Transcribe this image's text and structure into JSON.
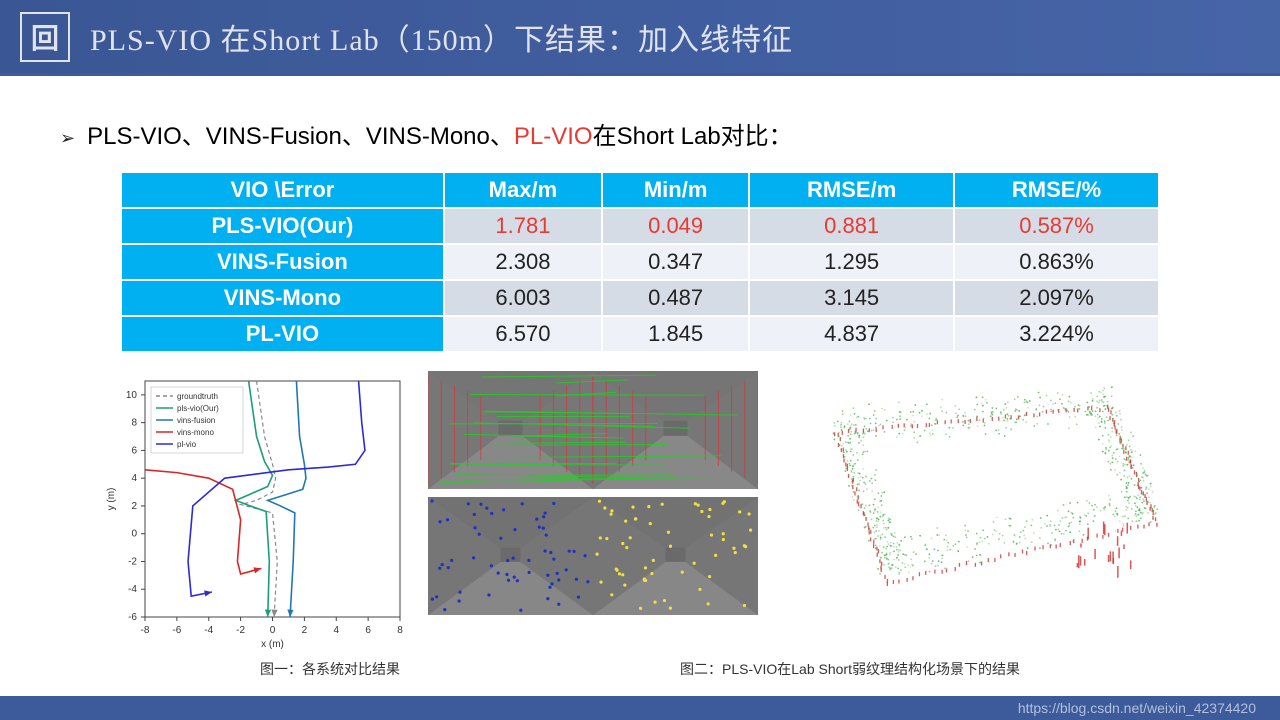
{
  "header": {
    "title": "PLS-VIO 在Short Lab（150m）下结果：加入线特征"
  },
  "bullet": {
    "prefix": "PLS-VIO、VINS-Fusion、VINS-Mono、",
    "highlighted": "PL-VIO",
    "suffix": "在Short Lab对比："
  },
  "table": {
    "columns": [
      "VIO \\Error",
      "Max/m",
      "Min/m",
      "RMSE/m",
      "RMSE/%"
    ],
    "rows": [
      {
        "name": "PLS-VIO(Our)",
        "vals": [
          "1.781",
          "0.049",
          "0.881",
          "0.587%"
        ],
        "highlight": true
      },
      {
        "name": "VINS-Fusion",
        "vals": [
          "2.308",
          "0.347",
          "1.295",
          "0.863%"
        ],
        "highlight": false
      },
      {
        "name": "VINS-Mono",
        "vals": [
          "6.003",
          "0.487",
          "3.145",
          "2.097%"
        ],
        "highlight": false
      },
      {
        "name": "PL-VIO",
        "vals": [
          "6.570",
          "1.845",
          "4.837",
          "3.224%"
        ],
        "highlight": false
      }
    ],
    "header_bg": "#00b0f0",
    "header_fg": "#ffffff",
    "row_bg_alt": [
      "#d6dce5",
      "#eef1f7"
    ],
    "highlight_fg": "#e63a33",
    "normal_fg": "#222222",
    "border_color": "#ffffff",
    "fontsize": 22
  },
  "trajectory_chart": {
    "type": "line",
    "xlabel": "x (m)",
    "ylabel": "y (m)",
    "label_fontsize": 10,
    "xlim": [
      -8,
      8
    ],
    "ylim": [
      -6,
      11
    ],
    "xtick_step": 2,
    "ytick_step": 2,
    "grid": false,
    "background": "#ffffff",
    "axis_color": "#444444",
    "legend_pos": "upper-left-inside",
    "legend_fontsize": 8,
    "series": [
      {
        "name": "groundtruth",
        "color": "#888888",
        "dash": "4,3",
        "width": 1.2,
        "points": [
          [
            -1,
            11
          ],
          [
            -0.5,
            7
          ],
          [
            0,
            5
          ],
          [
            0.2,
            4
          ],
          [
            0,
            3
          ],
          [
            -1,
            2.4
          ],
          [
            -2,
            2.1
          ],
          [
            -1,
            1.8
          ],
          [
            0,
            1.5
          ],
          [
            0.3,
            -2
          ],
          [
            0.1,
            -6
          ]
        ]
      },
      {
        "name": "pls-vio(Our)",
        "color": "#1b9e77",
        "dash": "",
        "width": 1.6,
        "points": [
          [
            -1.5,
            11
          ],
          [
            -1,
            7
          ],
          [
            -0.5,
            5.2
          ],
          [
            0,
            4.2
          ],
          [
            -0.3,
            3.4
          ],
          [
            -1.5,
            2.8
          ],
          [
            -2.3,
            2.4
          ],
          [
            -1.4,
            2.0
          ],
          [
            -0.4,
            1.6
          ],
          [
            -0.2,
            -2
          ],
          [
            -0.3,
            -6
          ]
        ]
      },
      {
        "name": "vins-fusion",
        "color": "#1f77b4",
        "dash": "",
        "width": 1.6,
        "points": [
          [
            1.5,
            11
          ],
          [
            1.7,
            7
          ],
          [
            2,
            5
          ],
          [
            2.1,
            4
          ],
          [
            1.9,
            3.2
          ],
          [
            0.8,
            2.8
          ],
          [
            -0.3,
            2.4
          ],
          [
            0.5,
            2.0
          ],
          [
            1.4,
            1.5
          ],
          [
            1.3,
            -2
          ],
          [
            1.1,
            -6
          ]
        ]
      },
      {
        "name": "vins-mono",
        "color": "#d62728",
        "dash": "",
        "width": 1.6,
        "points": [
          [
            -8,
            4.6
          ],
          [
            -6,
            4.4
          ],
          [
            -4,
            4.0
          ],
          [
            -2.5,
            3.2
          ],
          [
            -2,
            1
          ],
          [
            -2.2,
            -2
          ],
          [
            -2,
            -2.9
          ],
          [
            -0.7,
            -2.5
          ]
        ]
      },
      {
        "name": "pl-vio",
        "color": "#2b2bd6",
        "dash": "",
        "width": 1.6,
        "points": [
          [
            5.4,
            11
          ],
          [
            5.6,
            8
          ],
          [
            5.8,
            6
          ],
          [
            5.2,
            5
          ],
          [
            3.5,
            4.8
          ],
          [
            1,
            4.6
          ],
          [
            -3,
            4.0
          ],
          [
            -5,
            2
          ],
          [
            -5.3,
            -2
          ],
          [
            -5.1,
            -4.5
          ],
          [
            -3.8,
            -4.2
          ]
        ]
      }
    ]
  },
  "corridor_top": {
    "type": "feature-match",
    "bg": "#6a6a6a",
    "line_color": "#20d020",
    "accent_color": "#e03030",
    "n_lines": 22
  },
  "corridor_bottom": {
    "type": "feature-points",
    "bg": "#6a6a6a",
    "point_colors": [
      "#2030c0",
      "#f0e040"
    ],
    "n_points": 60
  },
  "pointcloud": {
    "type": "scatter-3d-projected",
    "bg": "#ffffff",
    "cloud_color": "#50b050",
    "accent_color": "#d03030",
    "n_points": 900
  },
  "captions": {
    "left": "图一：各系统对比结果",
    "right": "图二：PLS-VIO在Lab Short弱纹理结构化场景下的结果"
  },
  "footer": {
    "watermark": "https://blog.csdn.net/weixin_42374420"
  }
}
